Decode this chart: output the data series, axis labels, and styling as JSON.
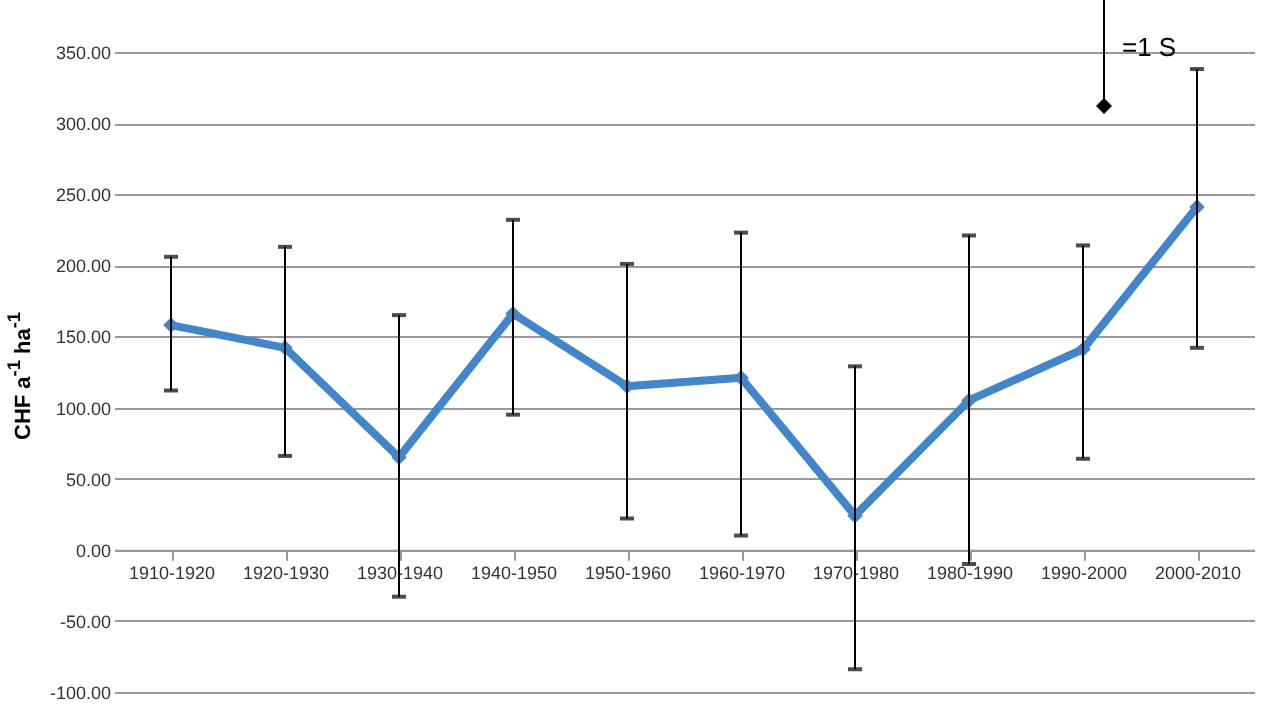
{
  "chart_data": {
    "type": "line",
    "ylabel": "CHF a$^{-1}$ ha$^{-1}$",
    "annotations": [
      "=1 S"
    ],
    "categories": [
      "1910-1920",
      "1920-1930",
      "1930-1940",
      "1940-1950",
      "1950-1960",
      "1960-1970",
      "1970-1980",
      "1980-1990",
      "1990-2000",
      "2000-2010"
    ],
    "series": [
      {
        "color": "#4285c8",
        "values": [
          158,
          142,
          65,
          166,
          115,
          121,
          24,
          105,
          141,
          241
        ],
        "errors": [
          [
            112,
            206
          ],
          [
            66,
            213
          ],
          [
            -33,
            165
          ],
          [
            95,
            232
          ],
          [
            22,
            201
          ],
          [
            10,
            223
          ],
          [
            -84,
            129
          ],
          [
            -10,
            221
          ],
          [
            64,
            214
          ],
          [
            142,
            338
          ]
        ]
      }
    ],
    "ylim": [
      -100,
      350
    ],
    "yticks": [
      {
        "value": -100,
        "label": "-100.00"
      },
      {
        "value": -50,
        "label": "-50.00"
      },
      {
        "value": 0,
        "label": "0.00"
      },
      {
        "value": 50,
        "label": "50.00"
      },
      {
        "value": 100,
        "label": "100.00"
      },
      {
        "value": 150,
        "label": "150.00"
      },
      {
        "value": 200,
        "label": "200.00"
      },
      {
        "value": 250,
        "label": "250.00"
      },
      {
        "value": 300,
        "label": "300.00"
      },
      {
        "value": 350,
        "label": "350.00"
      }
    ],
    "grid": "y",
    "marker": "diamond",
    "line_style": "solid"
  }
}
